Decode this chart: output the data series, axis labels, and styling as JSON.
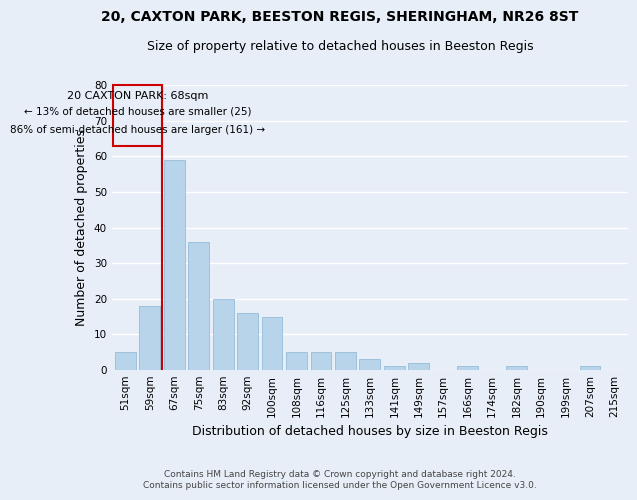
{
  "title1": "20, CAXTON PARK, BEESTON REGIS, SHERINGHAM, NR26 8ST",
  "title2": "Size of property relative to detached houses in Beeston Regis",
  "xlabel": "Distribution of detached houses by size in Beeston Regis",
  "ylabel": "Number of detached properties",
  "footer1": "Contains HM Land Registry data © Crown copyright and database right 2024.",
  "footer2": "Contains public sector information licensed under the Open Government Licence v3.0.",
  "categories": [
    "51sqm",
    "59sqm",
    "67sqm",
    "75sqm",
    "83sqm",
    "92sqm",
    "100sqm",
    "108sqm",
    "116sqm",
    "125sqm",
    "133sqm",
    "141sqm",
    "149sqm",
    "157sqm",
    "166sqm",
    "174sqm",
    "182sqm",
    "190sqm",
    "199sqm",
    "207sqm",
    "215sqm"
  ],
  "values": [
    5,
    18,
    59,
    36,
    20,
    16,
    15,
    5,
    5,
    5,
    3,
    1,
    2,
    0,
    1,
    0,
    1,
    0,
    0,
    1,
    0
  ],
  "bar_color": "#b8d4ea",
  "bar_edge_color": "#8ab4d4",
  "vline_color": "#cc0000",
  "box_color": "#cc0000",
  "highlight_label": "20 CAXTON PARK: 68sqm",
  "annotation_line1": "← 13% of detached houses are smaller (25)",
  "annotation_line2": "86% of semi-detached houses are larger (161) →",
  "ylim": [
    0,
    80
  ],
  "yticks": [
    0,
    10,
    20,
    30,
    40,
    50,
    60,
    70,
    80
  ],
  "background_color": "#e8eef8",
  "grid_color": "#ffffff",
  "title_fontsize": 10,
  "subtitle_fontsize": 9,
  "tick_fontsize": 7.5,
  "ylabel_fontsize": 9,
  "xlabel_fontsize": 9
}
